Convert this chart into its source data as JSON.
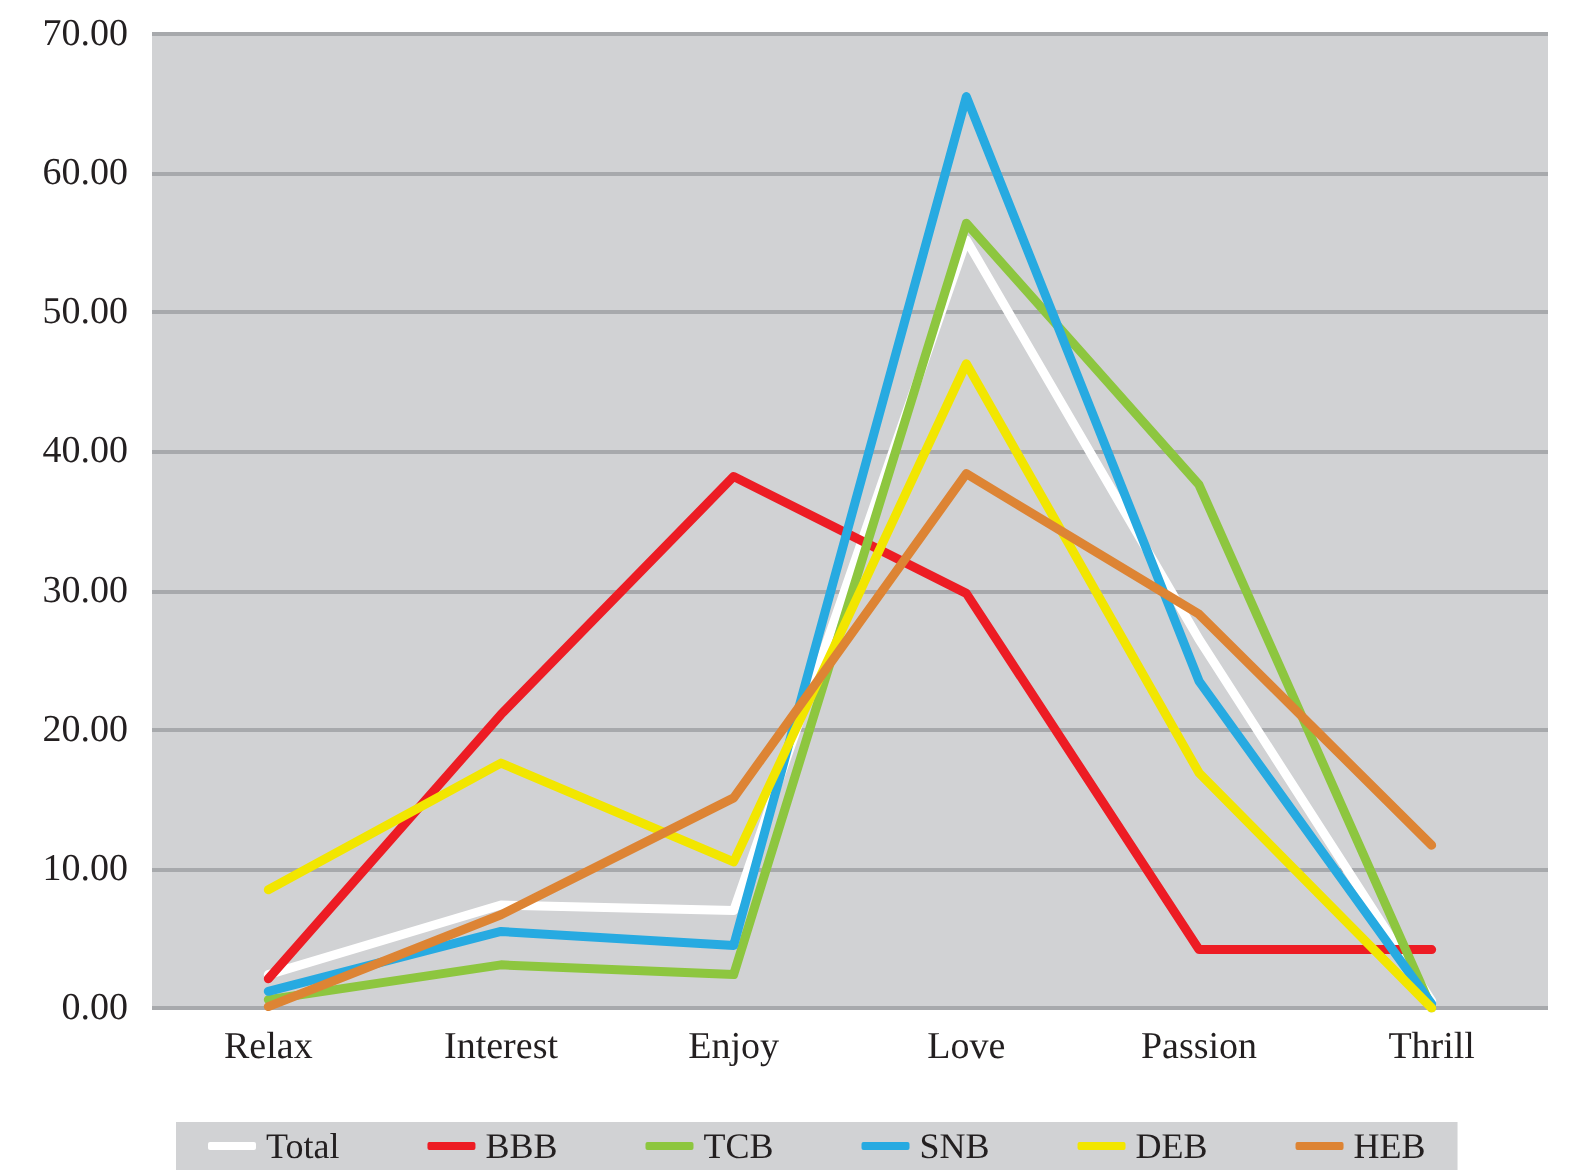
{
  "chart_data": {
    "type": "line",
    "categories": [
      "Relax",
      "Interest",
      "Enjoy",
      "Love",
      "Passion",
      "Thrill"
    ],
    "series": [
      {
        "name": "Total",
        "color": "#ffffff",
        "values": [
          2.4,
          7.4,
          7.0,
          55.2,
          26.5,
          0.5
        ]
      },
      {
        "name": "BBB",
        "color": "#ed1c24",
        "values": [
          2.1,
          21.1,
          38.2,
          29.8,
          4.2,
          4.2
        ]
      },
      {
        "name": "TCB",
        "color": "#8dc63f",
        "values": [
          0.6,
          3.1,
          2.4,
          56.4,
          37.6,
          0
        ]
      },
      {
        "name": "SNB",
        "color": "#27aae1",
        "values": [
          1.2,
          5.5,
          4.5,
          65.5,
          23.5,
          0.3
        ]
      },
      {
        "name": "DEB",
        "color": "#f2e600",
        "values": [
          8.5,
          17.6,
          10.5,
          46.3,
          16.9,
          0
        ]
      },
      {
        "name": "HEB",
        "color": "#dd8434",
        "values": [
          0.1,
          6.7,
          15.1,
          38.4,
          28.3,
          11.7
        ]
      }
    ],
    "ylim": [
      0,
      70
    ],
    "yticks": [
      {
        "value": 0,
        "label": "0.00"
      },
      {
        "value": 10,
        "label": "10.00"
      },
      {
        "value": 20,
        "label": "20.00"
      },
      {
        "value": 30,
        "label": "30.00"
      },
      {
        "value": 40,
        "label": "40.00"
      },
      {
        "value": 50,
        "label": "50.00"
      },
      {
        "value": 60,
        "label": "60.00"
      },
      {
        "value": 70,
        "label": "70.00"
      }
    ],
    "grid": "y",
    "legend": "bottom",
    "marker": "none",
    "line_style": "solid"
  }
}
